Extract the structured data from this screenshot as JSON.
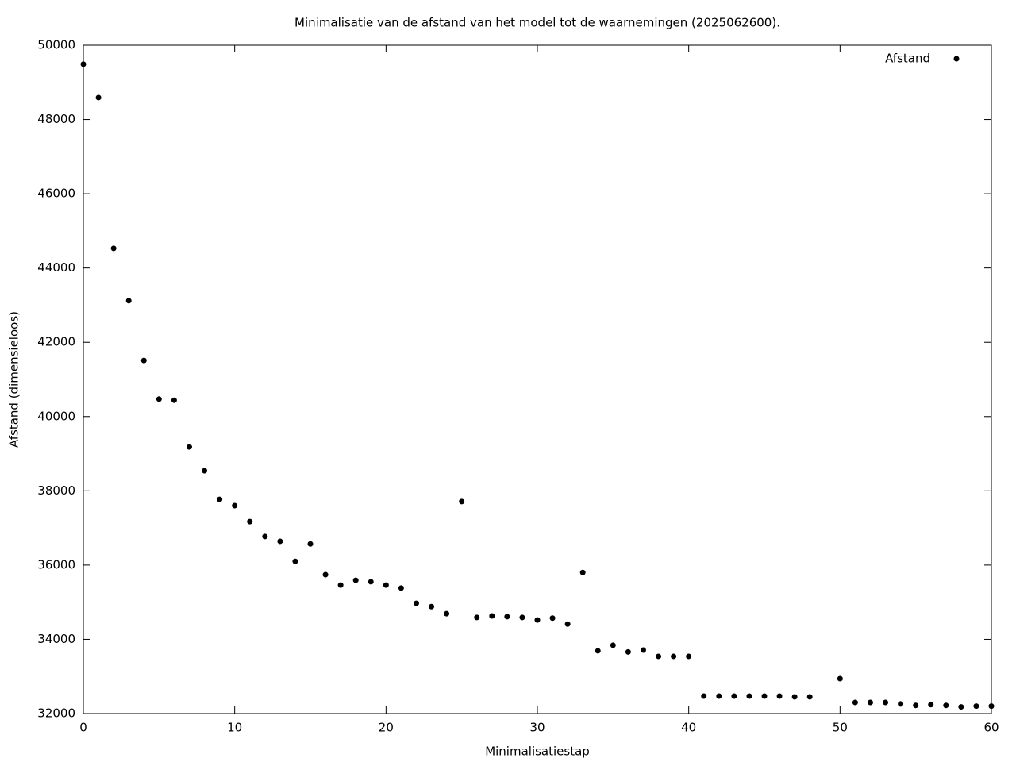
{
  "chart_data": {
    "type": "scatter",
    "title": "Minimalisatie van de afstand van het model tot de waarnemingen (2025062600).",
    "x_label": "Minimalisatiestap",
    "y_label": "Afstand (dimensieloos)",
    "x": [
      0,
      1,
      2,
      3,
      4,
      5,
      6,
      7,
      8,
      9,
      10,
      11,
      12,
      13,
      14,
      15,
      16,
      17,
      18,
      19,
      20,
      21,
      22,
      23,
      24,
      25,
      26,
      27,
      28,
      29,
      30,
      31,
      32,
      33,
      34,
      35,
      36,
      37,
      38,
      39,
      40,
      41,
      42,
      43,
      44,
      45,
      46,
      47,
      48,
      50,
      51,
      52,
      53,
      54,
      55,
      56,
      57,
      58,
      59,
      60
    ],
    "series": [
      {
        "name": "Afstand",
        "color": "#000000",
        "values": [
          49490,
          48590,
          44530,
          43120,
          41510,
          40470,
          40440,
          39180,
          38540,
          37770,
          37600,
          37170,
          36770,
          36640,
          36100,
          36570,
          35740,
          35460,
          35590,
          35550,
          35460,
          35380,
          34970,
          34880,
          34690,
          37710,
          34590,
          34630,
          34610,
          34590,
          34520,
          34570,
          34410,
          35800,
          33690,
          33840,
          33660,
          33710,
          33540,
          33540,
          33540,
          32470,
          32470,
          32470,
          32470,
          32470,
          32470,
          32450,
          32450,
          32940,
          32300,
          32300,
          32300,
          32260,
          32220,
          32240,
          32220,
          32180,
          32200,
          32200
        ]
      }
    ],
    "xlim": [
      0,
      60
    ],
    "xticks": [
      0,
      10,
      20,
      30,
      40,
      50,
      60
    ],
    "ylim": [
      32000,
      50000
    ],
    "yticks": [
      32000,
      34000,
      36000,
      38000,
      40000,
      42000,
      44000,
      46000,
      48000,
      50000
    ],
    "legend": "top-right"
  }
}
